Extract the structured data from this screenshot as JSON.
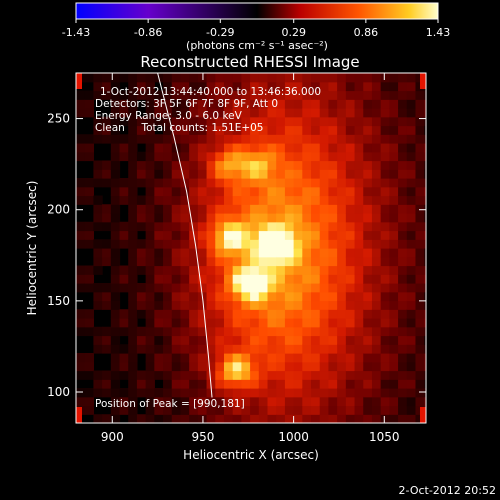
{
  "chart_data": {
    "type": "heatmap",
    "title": "Reconstructed RHESSI Image",
    "xlabel": "Heliocentric X (arcsec)",
    "ylabel": "Heliocentric Y (arcsec)",
    "xlim": [
      880,
      1073
    ],
    "ylim": [
      83,
      275
    ],
    "x_ticks": [
      900,
      950,
      1000,
      1050
    ],
    "y_ticks": [
      100,
      150,
      200,
      250
    ],
    "colorbar": {
      "ticks": [
        "-1.43",
        "-0.86",
        "-0.29",
        "0.29",
        "0.86",
        "1.43"
      ],
      "range": [
        -1.43,
        1.43
      ],
      "unit_label": "(photons cm⁻² s⁻¹ asec⁻²)"
    },
    "annotations": {
      "time_range": "1-Oct-2012 13:44:40.000 to 13:46:36.000",
      "detectors": "Detectors: 3F 5F 6F 7F 8F 9F, Att 0",
      "energy": "Energy Range: 3.0 - 6.0 keV",
      "method": "Clean     Total counts: 1.51E+05",
      "peak": "Position of Peak = [990,181]"
    },
    "sources": [
      {
        "x": 964,
        "y": 225,
        "peak": 0.72
      },
      {
        "x": 980,
        "y": 225,
        "peak": 0.62
      },
      {
        "x": 965,
        "y": 185,
        "peak": 1.05
      },
      {
        "x": 990,
        "y": 181,
        "peak": 1.43
      },
      {
        "x": 976,
        "y": 160,
        "peak": 1.25
      },
      {
        "x": 968,
        "y": 112,
        "peak": 1.15
      }
    ],
    "limb": [
      [
        925,
        275
      ],
      [
        934,
        240
      ],
      [
        941,
        210
      ],
      [
        946,
        180
      ],
      [
        950,
        150
      ],
      [
        953,
        120
      ],
      [
        955,
        97
      ]
    ],
    "colormap": [
      "#0000ff",
      "#6600cc",
      "#000000",
      "#cc1100",
      "#ff7700",
      "#ffee33",
      "#ffffff"
    ],
    "date_stamp": "2-Oct-2012 20:52"
  }
}
